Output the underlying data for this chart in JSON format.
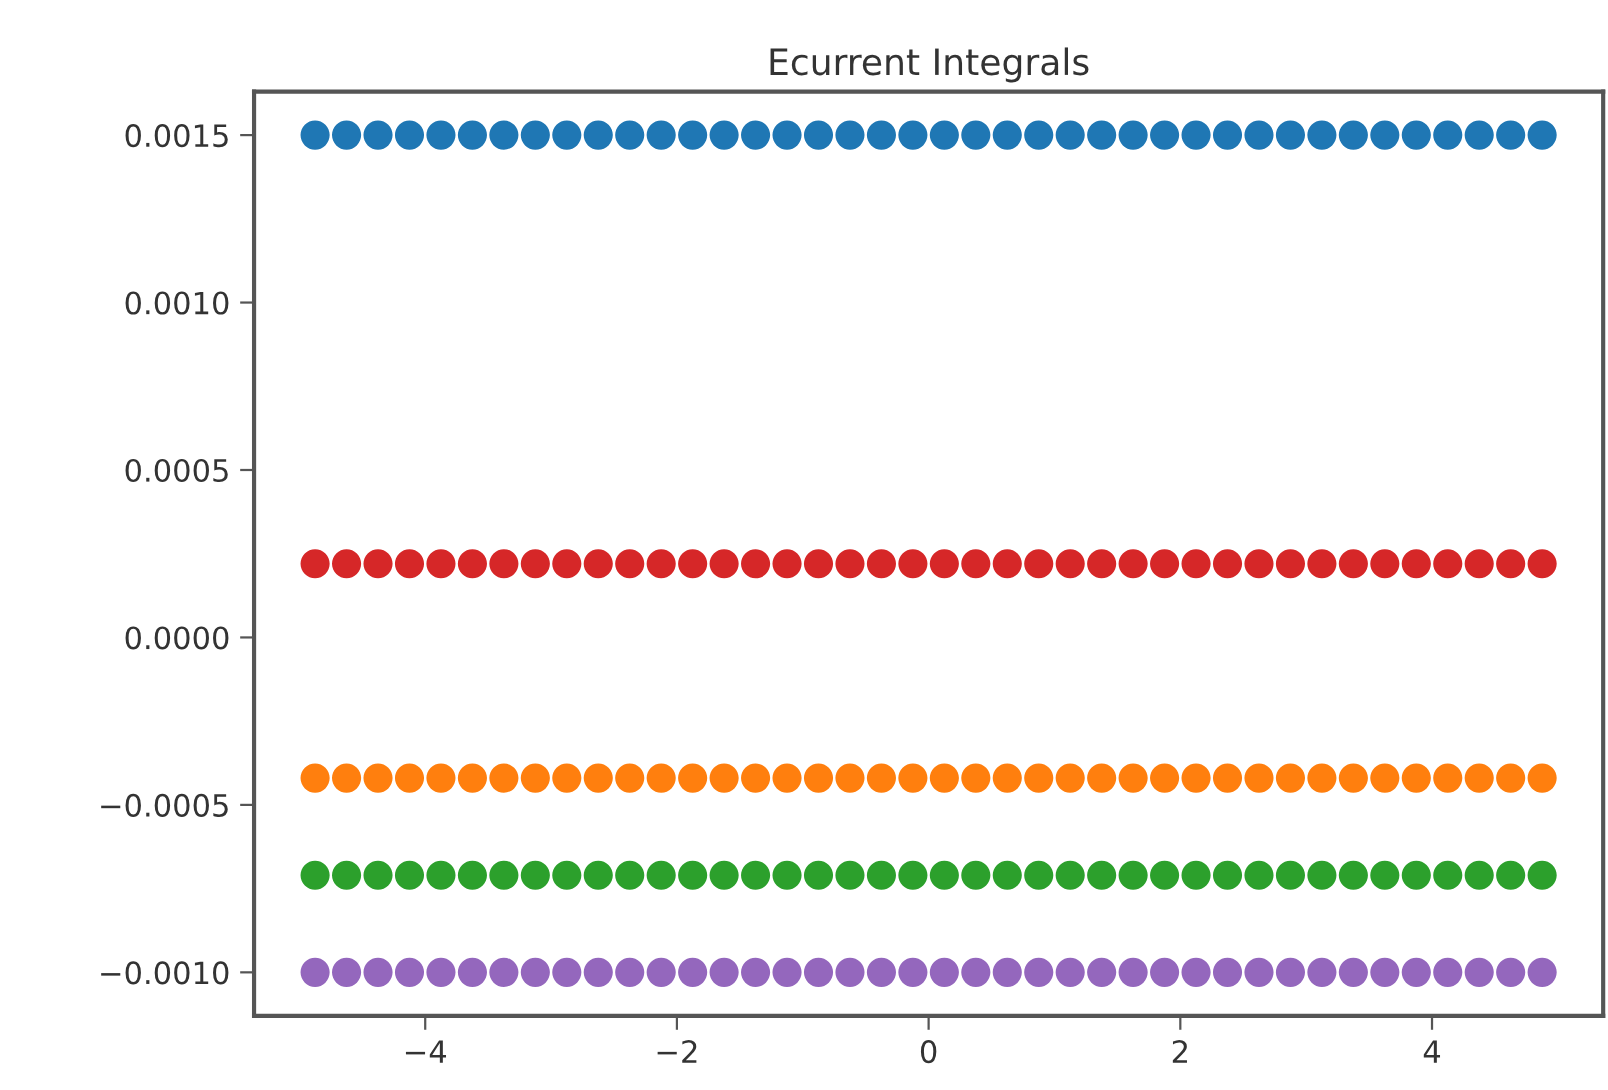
{
  "chart_data": {
    "type": "scatter",
    "title": "Ecurrent Integrals",
    "x": [
      -4.875,
      -4.625,
      -4.375,
      -4.125,
      -3.875,
      -3.625,
      -3.375,
      -3.125,
      -2.875,
      -2.625,
      -2.375,
      -2.125,
      -1.875,
      -1.625,
      -1.375,
      -1.125,
      -0.875,
      -0.625,
      -0.375,
      -0.125,
      0.125,
      0.375,
      0.625,
      0.875,
      1.125,
      1.375,
      1.625,
      1.875,
      2.125,
      2.375,
      2.625,
      2.875,
      3.125,
      3.375,
      3.625,
      3.875,
      4.125,
      4.375,
      4.625,
      4.875
    ],
    "series": [
      {
        "color": "#1f77b4",
        "values": [
          0.0015,
          0.0015,
          0.0015,
          0.0015,
          0.0015,
          0.0015,
          0.0015,
          0.0015,
          0.0015,
          0.0015,
          0.0015,
          0.0015,
          0.0015,
          0.0015,
          0.0015,
          0.0015,
          0.0015,
          0.0015,
          0.0015,
          0.0015,
          0.0015,
          0.0015,
          0.0015,
          0.0015,
          0.0015,
          0.0015,
          0.0015,
          0.0015,
          0.0015,
          0.0015,
          0.0015,
          0.0015,
          0.0015,
          0.0015,
          0.0015,
          0.0015,
          0.0015,
          0.0015,
          0.0015,
          0.0015
        ]
      },
      {
        "color": "#ff7f0e",
        "values": [
          -0.00042,
          -0.00042,
          -0.00042,
          -0.00042,
          -0.00042,
          -0.00042,
          -0.00042,
          -0.00042,
          -0.00042,
          -0.00042,
          -0.00042,
          -0.00042,
          -0.00042,
          -0.00042,
          -0.00042,
          -0.00042,
          -0.00042,
          -0.00042,
          -0.00042,
          -0.00042,
          -0.00042,
          -0.00042,
          -0.00042,
          -0.00042,
          -0.00042,
          -0.00042,
          -0.00042,
          -0.00042,
          -0.00042,
          -0.00042,
          -0.00042,
          -0.00042,
          -0.00042,
          -0.00042,
          -0.00042,
          -0.00042,
          -0.00042,
          -0.00042,
          -0.00042,
          -0.00042
        ]
      },
      {
        "color": "#2ca02c",
        "values": [
          -0.00071,
          -0.00071,
          -0.00071,
          -0.00071,
          -0.00071,
          -0.00071,
          -0.00071,
          -0.00071,
          -0.00071,
          -0.00071,
          -0.00071,
          -0.00071,
          -0.00071,
          -0.00071,
          -0.00071,
          -0.00071,
          -0.00071,
          -0.00071,
          -0.00071,
          -0.00071,
          -0.00071,
          -0.00071,
          -0.00071,
          -0.00071,
          -0.00071,
          -0.00071,
          -0.00071,
          -0.00071,
          -0.00071,
          -0.00071,
          -0.00071,
          -0.00071,
          -0.00071,
          -0.00071,
          -0.00071,
          -0.00071,
          -0.00071,
          -0.00071,
          -0.00071,
          -0.00071
        ]
      },
      {
        "color": "#d62728",
        "values": [
          0.00022,
          0.00022,
          0.00022,
          0.00022,
          0.00022,
          0.00022,
          0.00022,
          0.00022,
          0.00022,
          0.00022,
          0.00022,
          0.00022,
          0.00022,
          0.00022,
          0.00022,
          0.00022,
          0.00022,
          0.00022,
          0.00022,
          0.00022,
          0.00022,
          0.00022,
          0.00022,
          0.00022,
          0.00022,
          0.00022,
          0.00022,
          0.00022,
          0.00022,
          0.00022,
          0.00022,
          0.00022,
          0.00022,
          0.00022,
          0.00022,
          0.00022,
          0.00022,
          0.00022,
          0.00022,
          0.00022
        ]
      },
      {
        "color": "#9467bd",
        "values": [
          -0.001,
          -0.001,
          -0.001,
          -0.001,
          -0.001,
          -0.001,
          -0.001,
          -0.001,
          -0.001,
          -0.001,
          -0.001,
          -0.001,
          -0.001,
          -0.001,
          -0.001,
          -0.001,
          -0.001,
          -0.001,
          -0.001,
          -0.001,
          -0.001,
          -0.001,
          -0.001,
          -0.001,
          -0.001,
          -0.001,
          -0.001,
          -0.001,
          -0.001,
          -0.001,
          -0.001,
          -0.001,
          -0.001,
          -0.001,
          -0.001,
          -0.001,
          -0.001,
          -0.001,
          -0.001,
          -0.001
        ]
      }
    ],
    "xlim": [
      -5.36,
      5.36
    ],
    "ylim": [
      -0.00113,
      0.00163
    ],
    "xticks": [
      {
        "value": -4,
        "label": "−4"
      },
      {
        "value": -2,
        "label": "−2"
      },
      0,
      2,
      4
    ],
    "yticks": [
      {
        "value": -0.001,
        "label": "−0.0010"
      },
      {
        "value": -0.0005,
        "label": "−0.0005"
      },
      {
        "value": 0,
        "label": "0.0000"
      },
      {
        "value": 0.0005,
        "label": "0.0005"
      },
      {
        "value": 0.001,
        "label": "0.0010"
      },
      {
        "value": 0.0015,
        "label": "0.0015"
      }
    ],
    "marker": "circle",
    "grid": false
  }
}
